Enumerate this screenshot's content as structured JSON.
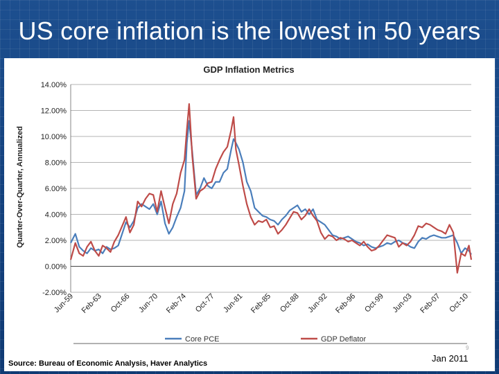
{
  "slide": {
    "title": "US core inflation is the lowest in 50 years",
    "source": "Source:  Bureau of Economic Analysis, Haver Analytics",
    "page_number": "9",
    "date": "Jan 2011"
  },
  "chart_data": {
    "type": "line",
    "title": "GDP Inflation Metrics",
    "xlabel": "",
    "ylabel": "Quarter-Over-Quarter, Annualized",
    "ylim": [
      -2,
      14
    ],
    "yticks": [
      "14.00%",
      "12.00%",
      "10.00%",
      "8.00%",
      "6.00%",
      "4.00%",
      "2.00%",
      "0.00%",
      "-2.00%"
    ],
    "xticks": [
      "Jun-59",
      "Feb-63",
      "Oct-66",
      "Jun-70",
      "Feb-74",
      "Oct-77",
      "Jun-81",
      "Feb-85",
      "Oct-88",
      "Jun-92",
      "Feb-96",
      "Oct-99",
      "Jun-03",
      "Feb-07",
      "Oct-10"
    ],
    "xlim": [
      1959.4,
      2010.8
    ],
    "grid": true,
    "legend_position": "bottom",
    "colors": {
      "core_pce": "#4a7ebb",
      "gdp_deflator": "#be4b48"
    },
    "series": [
      {
        "name": "Core PCE",
        "key": "core_pce",
        "x": [
          1959.4,
          1960.0,
          1960.5,
          1961.0,
          1961.5,
          1962.0,
          1962.5,
          1963.0,
          1963.5,
          1964.0,
          1964.5,
          1965.0,
          1965.5,
          1966.0,
          1966.5,
          1967.0,
          1967.5,
          1968.0,
          1968.5,
          1969.0,
          1969.5,
          1970.0,
          1970.5,
          1971.0,
          1971.5,
          1972.0,
          1972.5,
          1973.0,
          1973.5,
          1974.0,
          1974.3,
          1974.6,
          1975.0,
          1975.5,
          1976.0,
          1976.5,
          1977.0,
          1977.5,
          1978.0,
          1978.5,
          1979.0,
          1979.5,
          1980.0,
          1980.3,
          1980.6,
          1981.0,
          1981.5,
          1982.0,
          1982.5,
          1983.0,
          1983.5,
          1984.0,
          1984.5,
          1985.0,
          1985.5,
          1986.0,
          1986.5,
          1987.0,
          1987.5,
          1988.0,
          1988.5,
          1989.0,
          1989.5,
          1990.0,
          1990.5,
          1991.0,
          1991.5,
          1992.0,
          1992.5,
          1993.0,
          1993.5,
          1994.0,
          1994.5,
          1995.0,
          1995.5,
          1996.0,
          1996.5,
          1997.0,
          1997.5,
          1998.0,
          1998.5,
          1999.0,
          1999.5,
          2000.0,
          2000.5,
          2001.0,
          2001.5,
          2002.0,
          2002.5,
          2003.0,
          2003.5,
          2004.0,
          2004.5,
          2005.0,
          2005.5,
          2006.0,
          2006.5,
          2007.0,
          2007.5,
          2008.0,
          2008.5,
          2009.0,
          2009.5,
          2010.0,
          2010.5,
          2010.8
        ],
        "values": [
          1.8,
          2.5,
          1.5,
          1.2,
          1.0,
          1.4,
          1.2,
          1.3,
          1.0,
          1.5,
          1.3,
          1.4,
          1.6,
          2.5,
          3.4,
          3.0,
          3.5,
          4.5,
          4.8,
          4.6,
          4.4,
          4.8,
          4.0,
          5.0,
          3.3,
          2.5,
          3.0,
          3.8,
          4.5,
          5.8,
          9.5,
          11.2,
          8.8,
          5.5,
          6.0,
          6.8,
          6.2,
          6.0,
          6.5,
          6.5,
          7.2,
          7.5,
          9.0,
          9.8,
          9.5,
          9.0,
          8.0,
          6.5,
          5.8,
          4.5,
          4.2,
          3.9,
          3.8,
          3.6,
          3.5,
          3.2,
          3.6,
          3.9,
          4.3,
          4.5,
          4.7,
          4.2,
          4.4,
          4.0,
          4.4,
          3.6,
          3.4,
          3.2,
          2.8,
          2.4,
          2.3,
          2.1,
          2.2,
          2.3,
          2.1,
          1.9,
          1.8,
          1.6,
          1.7,
          1.5,
          1.4,
          1.5,
          1.6,
          1.8,
          1.7,
          1.9,
          2.0,
          1.8,
          1.7,
          1.5,
          1.4,
          1.9,
          2.2,
          2.1,
          2.3,
          2.4,
          2.3,
          2.2,
          2.2,
          2.3,
          2.4,
          1.8,
          1.0,
          1.4,
          1.2,
          0.9
        ]
      },
      {
        "name": "GDP Deflator",
        "key": "gdp_deflator",
        "x": [
          1959.4,
          1960.0,
          1960.5,
          1961.0,
          1961.5,
          1962.0,
          1962.5,
          1963.0,
          1963.5,
          1964.0,
          1964.5,
          1965.0,
          1965.5,
          1966.0,
          1966.5,
          1967.0,
          1967.5,
          1968.0,
          1968.5,
          1969.0,
          1969.5,
          1970.0,
          1970.5,
          1971.0,
          1971.5,
          1972.0,
          1972.5,
          1973.0,
          1973.5,
          1974.0,
          1974.3,
          1974.6,
          1975.0,
          1975.5,
          1976.0,
          1976.5,
          1977.0,
          1977.5,
          1978.0,
          1978.5,
          1979.0,
          1979.5,
          1980.0,
          1980.3,
          1980.6,
          1981.0,
          1981.5,
          1982.0,
          1982.5,
          1983.0,
          1983.5,
          1984.0,
          1984.5,
          1985.0,
          1985.5,
          1986.0,
          1986.5,
          1987.0,
          1987.5,
          1988.0,
          1988.5,
          1989.0,
          1989.5,
          1990.0,
          1990.5,
          1991.0,
          1991.5,
          1992.0,
          1992.5,
          1993.0,
          1993.5,
          1994.0,
          1994.5,
          1995.0,
          1995.5,
          1996.0,
          1996.5,
          1997.0,
          1997.5,
          1998.0,
          1998.5,
          1999.0,
          1999.5,
          2000.0,
          2000.5,
          2001.0,
          2001.5,
          2002.0,
          2002.5,
          2003.0,
          2003.5,
          2004.0,
          2004.5,
          2005.0,
          2005.5,
          2006.0,
          2006.5,
          2007.0,
          2007.5,
          2008.0,
          2008.5,
          2009.0,
          2009.5,
          2010.0,
          2010.5,
          2010.8
        ],
        "values": [
          0.5,
          1.8,
          1.0,
          0.8,
          1.5,
          1.9,
          1.2,
          0.8,
          1.6,
          1.4,
          1.1,
          1.9,
          2.4,
          3.1,
          3.8,
          2.6,
          3.2,
          5.0,
          4.6,
          5.2,
          5.6,
          5.5,
          4.2,
          5.8,
          4.5,
          3.3,
          4.8,
          5.6,
          7.2,
          8.2,
          10.5,
          12.5,
          8.5,
          5.2,
          5.8,
          6.0,
          6.4,
          6.5,
          7.5,
          8.2,
          8.8,
          9.2,
          10.5,
          11.5,
          9.0,
          7.8,
          6.2,
          4.8,
          3.8,
          3.2,
          3.5,
          3.4,
          3.6,
          3.0,
          3.1,
          2.5,
          2.8,
          3.2,
          3.7,
          4.2,
          4.1,
          3.6,
          3.9,
          4.4,
          3.9,
          3.5,
          2.6,
          2.1,
          2.4,
          2.3,
          2.0,
          2.2,
          2.1,
          1.9,
          2.0,
          1.8,
          1.6,
          1.9,
          1.5,
          1.2,
          1.3,
          1.6,
          2.0,
          2.4,
          2.3,
          2.2,
          1.5,
          1.8,
          1.6,
          1.9,
          2.4,
          3.1,
          3.0,
          3.3,
          3.2,
          3.0,
          2.8,
          2.7,
          2.5,
          3.2,
          2.6,
          -0.5,
          1.0,
          0.8,
          1.6,
          0.5
        ]
      }
    ]
  }
}
